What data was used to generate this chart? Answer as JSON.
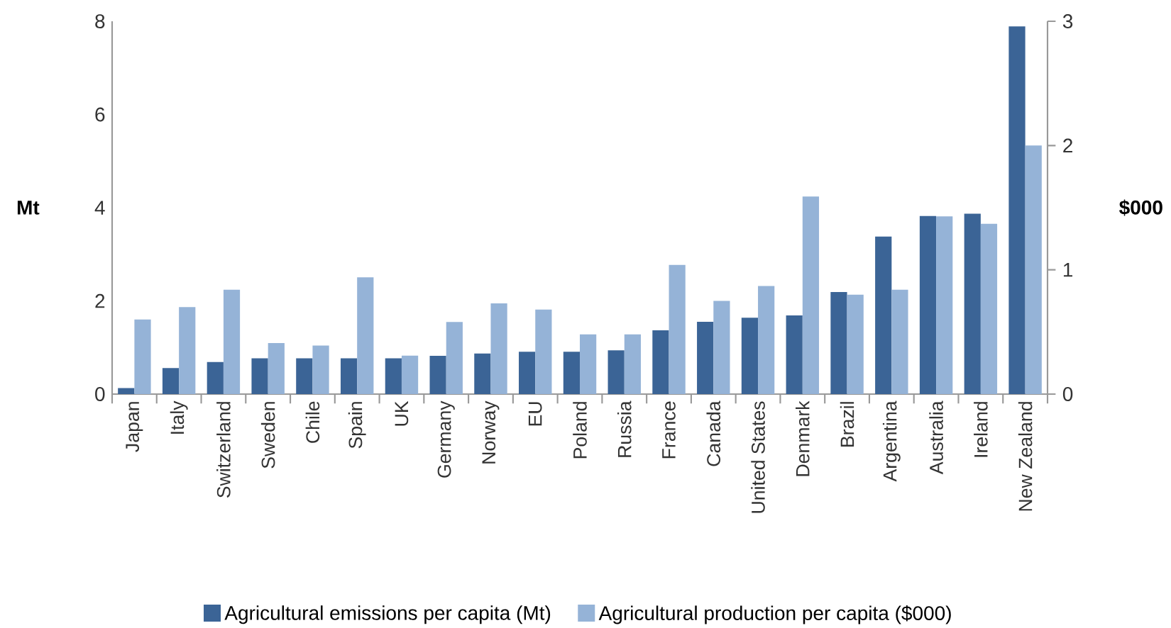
{
  "chart_data": {
    "type": "bar",
    "categories": [
      "Japan",
      "Italy",
      "Switzerland",
      "Sweden",
      "Chile",
      "Spain",
      "UK",
      "Germany",
      "Norway",
      "EU",
      "Poland",
      "Russia",
      "France",
      "Canada",
      "United States",
      "Denmark",
      "Brazil",
      "Argentina",
      "Australia",
      "Ireland",
      "New Zealand"
    ],
    "series": [
      {
        "name": "Agricultural emissions per capita (Mt)",
        "color": "#3b6496",
        "values": [
          0.13,
          0.56,
          0.69,
          0.77,
          0.77,
          0.77,
          0.77,
          0.82,
          0.87,
          0.91,
          0.91,
          0.94,
          1.37,
          1.55,
          1.64,
          1.69,
          2.19,
          3.38,
          3.82,
          3.87,
          7.89
        ]
      },
      {
        "name": "Agricultural production per capita ($000)",
        "color": "#95b3d7",
        "axis": "y2",
        "values": [
          0.6,
          0.7,
          0.84,
          0.41,
          0.39,
          0.94,
          0.31,
          0.58,
          0.73,
          0.68,
          0.48,
          0.48,
          1.04,
          0.75,
          0.87,
          1.59,
          0.8,
          0.84,
          1.43,
          1.37,
          2.0
        ]
      }
    ],
    "ylabel": "Mt",
    "y2label": "$000",
    "ylim": [
      0,
      8
    ],
    "yticks": [
      0,
      2,
      4,
      6,
      8
    ],
    "y2lim": [
      0,
      3
    ],
    "y2ticks": [
      0,
      1,
      2,
      3
    ],
    "grid": false,
    "legend": "bottom"
  }
}
